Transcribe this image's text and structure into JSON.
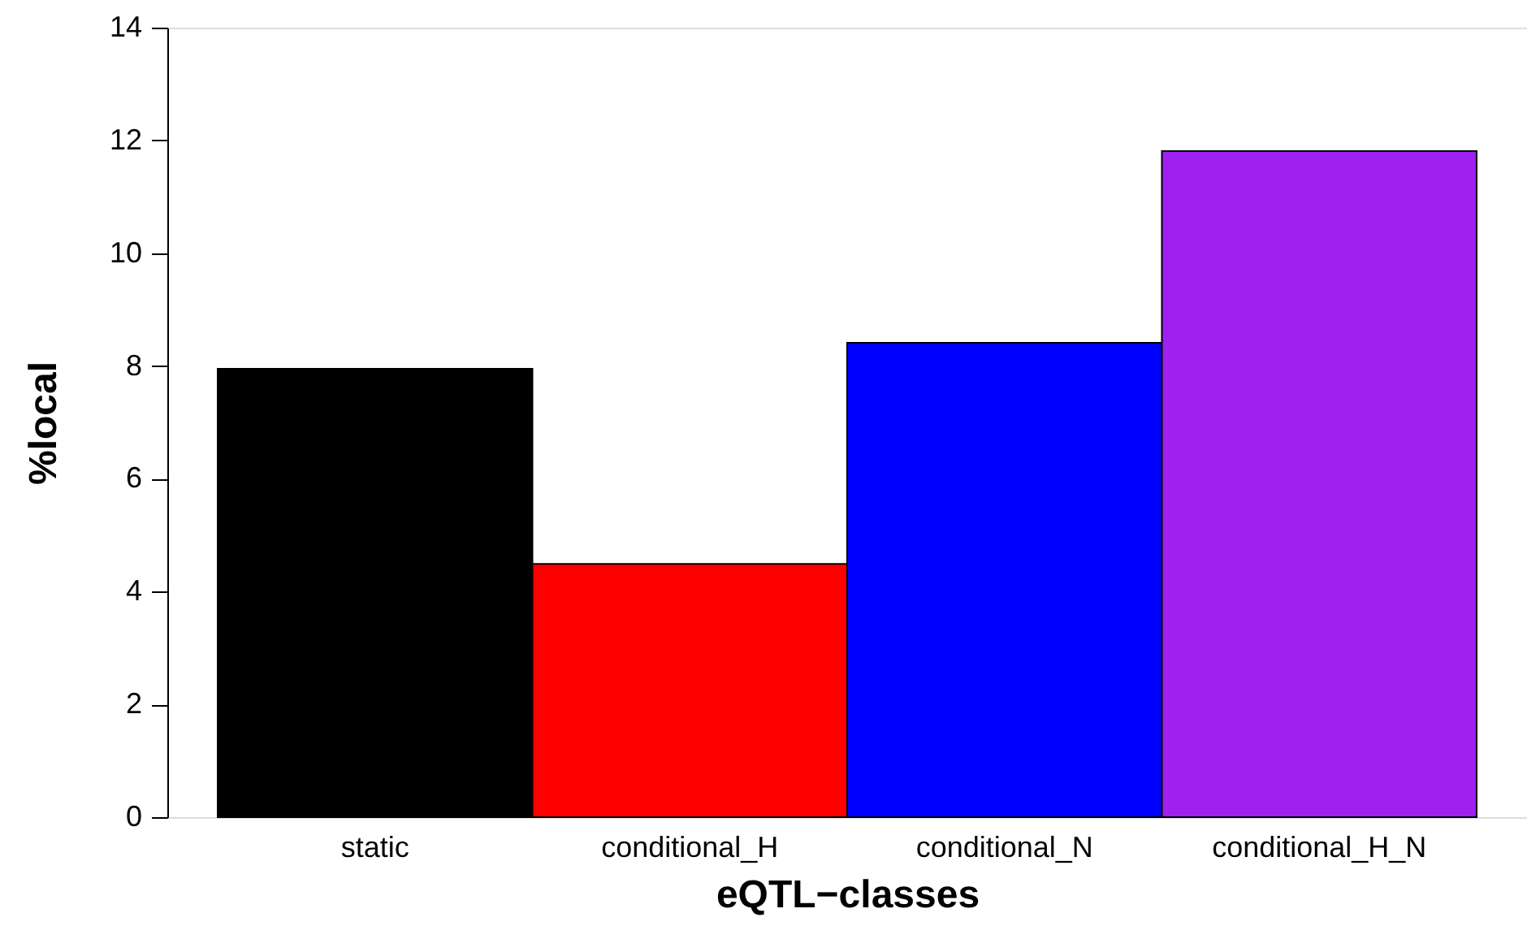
{
  "chart_data": {
    "type": "bar",
    "categories": [
      "static",
      "conditional_H",
      "conditional_N",
      "conditional_H_N"
    ],
    "values": [
      7.95,
      4.49,
      8.41,
      11.81
    ],
    "colors": [
      "#000000",
      "#ff0000",
      "#0000ff",
      "#a020f0"
    ],
    "xlabel": "eQTL−classes",
    "ylabel": "%local",
    "ylim": [
      0,
      14
    ],
    "yticks": [
      0,
      2,
      4,
      6,
      8,
      10,
      12,
      14
    ]
  }
}
